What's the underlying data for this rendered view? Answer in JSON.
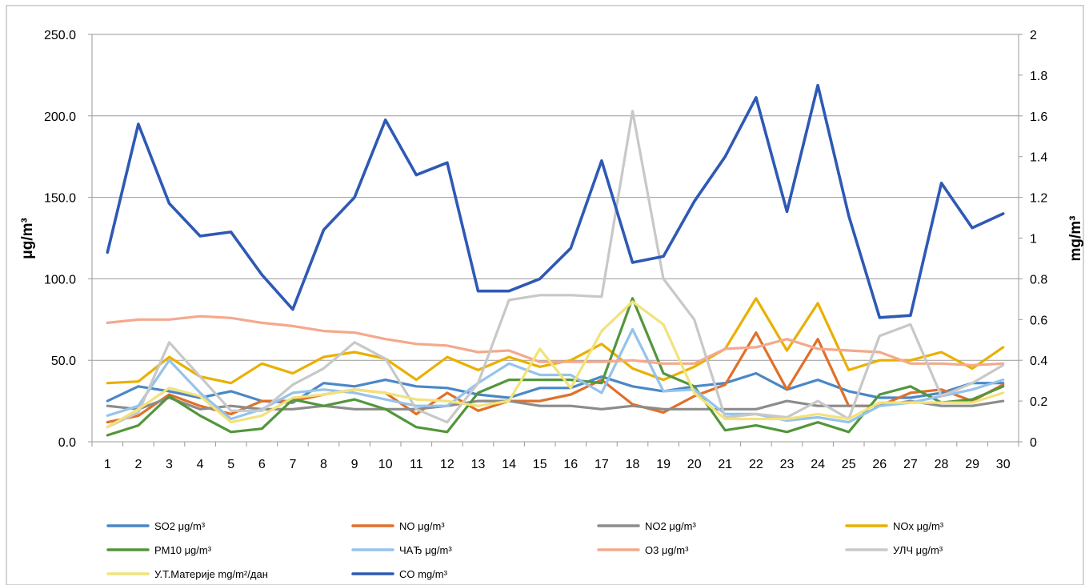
{
  "chart_data": {
    "type": "line",
    "title": "",
    "xlabel": "",
    "ylabel": "μg/m³",
    "y2label": "mg/m³",
    "x": [
      1,
      2,
      3,
      4,
      5,
      6,
      7,
      8,
      9,
      10,
      11,
      12,
      13,
      14,
      15,
      16,
      17,
      18,
      19,
      20,
      21,
      22,
      23,
      24,
      25,
      26,
      27,
      28,
      29,
      30
    ],
    "ylim": [
      0,
      250
    ],
    "y2lim": [
      0,
      2
    ],
    "yticks": [
      "0.0",
      "50.0",
      "100.0",
      "150.0",
      "200.0",
      "250.0"
    ],
    "y2ticks": [
      "0",
      "0.2",
      "0.4",
      "0.6",
      "0.8",
      "1",
      "1.2",
      "1.4",
      "1.6",
      "1.8",
      "2"
    ],
    "grid": true,
    "legend_position": "bottom",
    "series": [
      {
        "name": "SO2 μg/m³",
        "color": "#4A87C7",
        "axis": "left",
        "values": [
          25,
          34,
          31,
          27,
          31,
          25,
          24,
          36,
          34,
          38,
          34,
          33,
          29,
          27,
          33,
          33,
          40,
          34,
          31,
          34,
          36,
          42,
          32,
          38,
          31,
          27,
          27,
          30,
          36,
          36
        ]
      },
      {
        "name": "NO μg/m³",
        "color": "#E0702A",
        "axis": "left",
        "values": [
          12,
          16,
          29,
          22,
          17,
          25,
          25,
          29,
          32,
          30,
          17,
          30,
          19,
          25,
          25,
          29,
          38,
          23,
          18,
          28,
          35,
          67,
          32,
          63,
          22,
          22,
          30,
          32,
          25,
          35
        ]
      },
      {
        "name": "NO2 μg/m³",
        "color": "#8C8C8C",
        "axis": "left",
        "values": [
          22,
          20,
          27,
          20,
          22,
          20,
          20,
          22,
          20,
          20,
          20,
          22,
          25,
          25,
          22,
          22,
          20,
          22,
          20,
          20,
          20,
          20,
          25,
          22,
          22,
          22,
          25,
          22,
          22,
          25
        ]
      },
      {
        "name": "NOx μg/m³",
        "color": "#E9B000",
        "axis": "left",
        "values": [
          36,
          37,
          52,
          40,
          36,
          48,
          42,
          52,
          55,
          51,
          38,
          52,
          44,
          52,
          46,
          50,
          60,
          45,
          38,
          46,
          57,
          88,
          56,
          85,
          44,
          50,
          50,
          55,
          45,
          58
        ]
      },
      {
        "name": "PM10 μg/m³",
        "color": "#53963B",
        "axis": "left",
        "values": [
          4,
          10,
          28,
          16,
          6,
          8,
          26,
          22,
          26,
          20,
          9,
          6,
          30,
          38,
          38,
          38,
          36,
          88,
          42,
          34,
          7,
          10,
          6,
          12,
          6,
          29,
          34,
          24,
          26,
          34
        ]
      },
      {
        "name": "ЧАЂ μg/m³",
        "color": "#95C3EB",
        "axis": "left",
        "values": [
          16,
          22,
          50,
          30,
          14,
          20,
          30,
          32,
          30,
          26,
          22,
          22,
          36,
          48,
          41,
          41,
          30,
          69,
          31,
          32,
          17,
          17,
          13,
          15,
          12,
          22,
          24,
          28,
          32,
          38
        ]
      },
      {
        "name": "O3 μg/m³",
        "color": "#F4A98C",
        "axis": "left",
        "values": [
          73,
          75,
          75,
          77,
          76,
          73,
          71,
          68,
          67,
          63,
          60,
          59,
          55,
          56,
          49,
          49,
          49,
          50,
          48,
          48,
          57,
          58,
          63,
          57,
          56,
          55,
          48,
          48,
          47,
          48
        ]
      },
      {
        "name": "УЛЧ μg/m³",
        "color": "#C8C8C8",
        "axis": "left",
        "values": [
          9,
          18,
          61,
          40,
          19,
          19,
          35,
          45,
          61,
          51,
          20,
          12,
          36,
          87,
          90,
          90,
          89,
          203,
          100,
          75,
          15,
          17,
          15,
          25,
          14,
          65,
          72,
          28,
          36,
          47
        ]
      },
      {
        "name": "У.Т.Материје mg/m²/дан",
        "color": "#F2E27A",
        "axis": "left",
        "values": [
          9,
          20,
          33,
          28,
          12,
          16,
          27,
          29,
          32,
          30,
          26,
          25,
          22,
          25,
          57,
          33,
          68,
          86,
          72,
          30,
          14,
          14,
          14,
          17,
          14,
          24,
          24,
          24,
          24,
          30
        ]
      },
      {
        "name": "CO mg/m³",
        "color": "#2E59B5",
        "axis": "right",
        "values": [
          0.93,
          1.56,
          1.17,
          1.01,
          1.03,
          0.82,
          0.65,
          1.04,
          1.2,
          1.58,
          1.31,
          1.37,
          0.74,
          0.74,
          0.8,
          0.95,
          1.38,
          0.88,
          0.91,
          1.18,
          1.4,
          1.69,
          1.13,
          1.75,
          1.11,
          0.61,
          0.62,
          1.27,
          1.05,
          1.12
        ]
      }
    ]
  }
}
